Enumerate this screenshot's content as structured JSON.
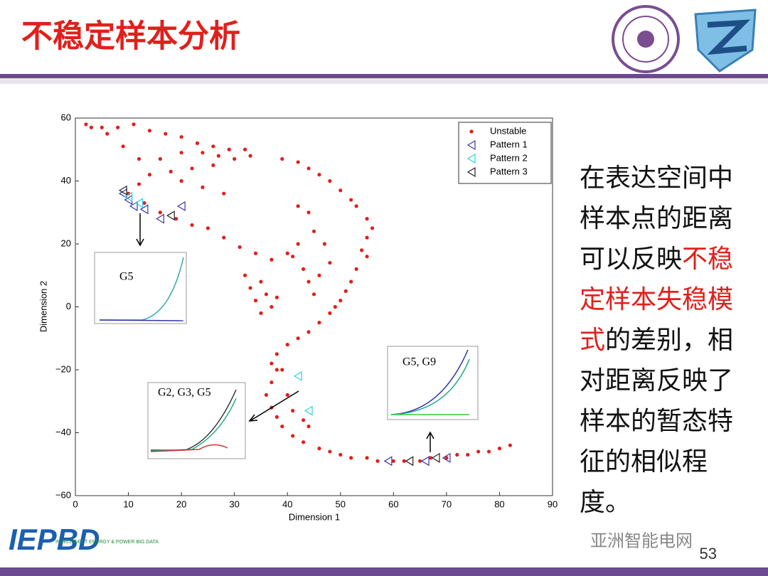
{
  "title": "不稳定样本分析",
  "side_text": [
    "在表达空间中样本点的距离可以反映",
    "不稳定样本失稳模式",
    "的差别，相对距离反映了样本的暂态特征的相似程度。"
  ],
  "page_number": "53",
  "watermark": "亚洲智能电网",
  "logo": {
    "mark": "IEPBD",
    "tagline": "INTELLIGENT ENERGY & POWER BIG DATA"
  },
  "chart_data": {
    "type": "scatter",
    "xlabel": "Dimension 1",
    "ylabel": "Dimension 2",
    "xlim": [
      0,
      90
    ],
    "ylim": [
      -60,
      60
    ],
    "xticks": [
      0,
      10,
      20,
      30,
      40,
      50,
      60,
      70,
      80,
      90
    ],
    "yticks": [
      {
        "value": -60,
        "label": "−60"
      },
      {
        "value": -40,
        "label": "−40"
      },
      {
        "value": -20,
        "label": "−20"
      },
      0,
      20,
      40,
      60
    ],
    "legend": "top right",
    "annotations": [
      "G5",
      "G2, G3, G5",
      "G5, G9"
    ],
    "series": [
      {
        "name": "Unstable",
        "color": "#e0201b",
        "marker": "dot",
        "x": [
          2,
          5,
          8,
          11,
          14,
          17,
          20,
          23,
          26,
          29,
          32,
          33,
          30,
          27,
          24,
          20,
          16,
          12,
          9,
          6,
          3,
          10,
          13,
          16,
          19,
          22,
          25,
          28,
          31,
          34,
          37,
          40,
          41,
          14,
          18,
          22,
          26,
          20,
          24,
          28,
          12,
          32,
          33,
          35,
          36,
          34,
          37,
          35,
          38,
          39,
          42,
          44,
          46,
          48,
          50,
          52,
          53,
          55,
          56,
          55,
          54,
          55,
          53,
          52,
          51,
          50,
          49,
          48,
          46,
          44,
          42,
          40,
          38,
          37,
          38,
          37,
          36,
          37,
          38,
          39,
          41,
          43,
          46,
          50,
          55,
          60,
          65,
          70,
          74,
          78,
          82,
          48,
          52,
          57,
          62,
          67,
          72,
          76,
          80,
          42,
          44,
          45,
          47,
          48,
          46,
          44,
          45,
          42,
          43,
          39,
          40,
          41,
          43,
          44
        ],
        "values": [
          58,
          57,
          57,
          58,
          56,
          55,
          54,
          52,
          51,
          50,
          50,
          48,
          47,
          48,
          49,
          49,
          47,
          47,
          51,
          55,
          57,
          36,
          33,
          30,
          28,
          26,
          25,
          22,
          19,
          17,
          15,
          17,
          16,
          42,
          43,
          44,
          45,
          40,
          38,
          36,
          39,
          10,
          6,
          8,
          4,
          2,
          0,
          -2,
          3,
          47,
          46,
          44,
          42,
          40,
          37,
          34,
          32,
          28,
          25,
          22,
          18,
          16,
          12,
          8,
          5,
          2,
          0,
          -2,
          -5,
          -8,
          -10,
          -12,
          -15,
          -18,
          -20,
          -24,
          -28,
          -32,
          -35,
          -38,
          -41,
          -43,
          -45,
          -47,
          -48,
          -49,
          -49,
          -48,
          -47,
          -46,
          -44,
          -46,
          -48,
          -49,
          -49,
          -48,
          -47,
          -46,
          -45,
          32,
          30,
          24,
          20,
          14,
          10,
          8,
          4,
          20,
          12,
          -20,
          -28,
          -33,
          -36,
          -38
        ]
      },
      {
        "name": "Pattern 1",
        "color": "#3a3aa8",
        "marker": "triangle-left",
        "x": [
          9,
          10,
          11,
          13,
          16,
          20,
          59,
          66,
          70
        ],
        "values": [
          36,
          34,
          32,
          31,
          28,
          32,
          -49,
          -49,
          -48
        ]
      },
      {
        "name": "Pattern 2",
        "color": "#2fd0e0",
        "marker": "triangle-left",
        "x": [
          10,
          12,
          42,
          44
        ],
        "values": [
          35,
          33,
          -22,
          -33
        ]
      },
      {
        "name": "Pattern 3",
        "color": "#222222",
        "marker": "triangle-left",
        "x": [
          9,
          18,
          63,
          68
        ],
        "values": [
          37,
          29,
          -49,
          -48
        ]
      }
    ]
  }
}
